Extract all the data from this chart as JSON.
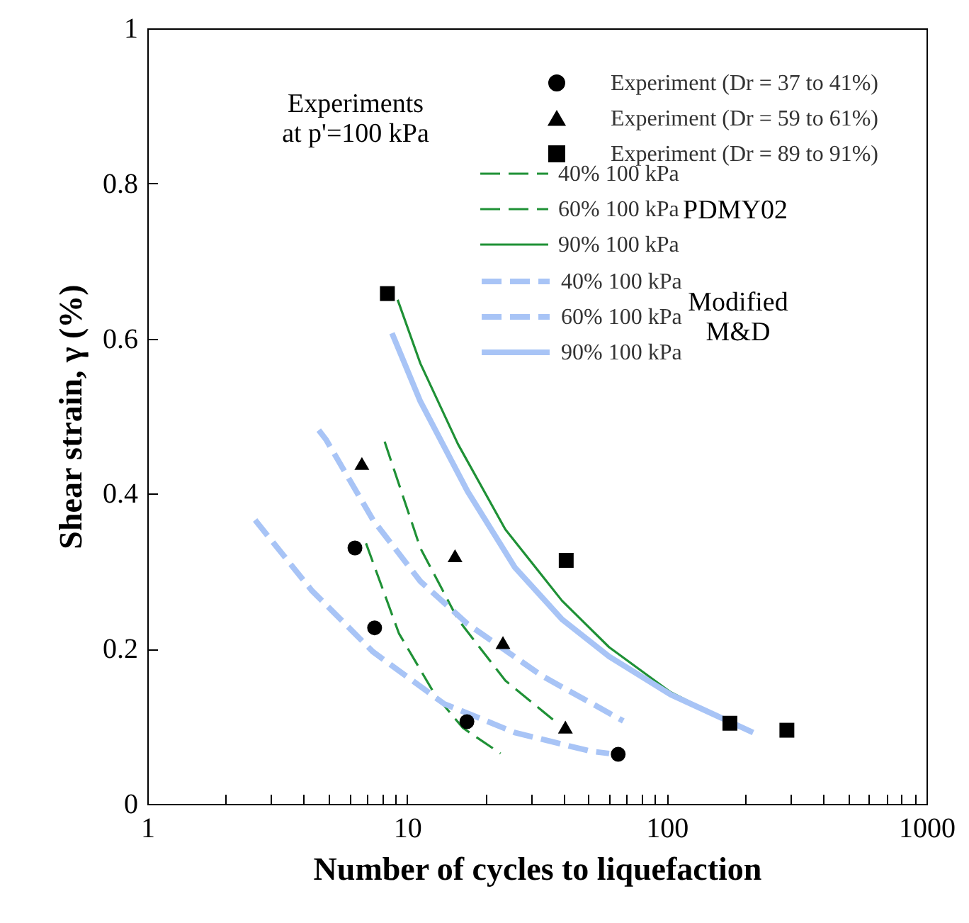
{
  "chart_data": {
    "type": "line",
    "xlabel": "Number of cycles to liquefaction",
    "ylabel": "Shear strain, γ  (%)",
    "log": "x",
    "xlim": [
      1,
      1000
    ],
    "ylim": [
      0,
      1
    ],
    "xticks": [
      1,
      {
        "value": 2,
        "label": null
      },
      {
        "value": 3,
        "label": null
      },
      {
        "value": 4,
        "label": null
      },
      {
        "value": 5,
        "label": null
      },
      {
        "value": 6,
        "label": null
      },
      {
        "value": 7,
        "label": null
      },
      {
        "value": 8,
        "label": null
      },
      {
        "value": 9,
        "label": null
      },
      10,
      {
        "value": 20,
        "label": null
      },
      {
        "value": 30,
        "label": null
      },
      {
        "value": 40,
        "label": null
      },
      {
        "value": 50,
        "label": null
      },
      {
        "value": 60,
        "label": null
      },
      {
        "value": 70,
        "label": null
      },
      {
        "value": 80,
        "label": null
      },
      {
        "value": 90,
        "label": null
      },
      100,
      {
        "value": 200,
        "label": null
      },
      {
        "value": 300,
        "label": null
      },
      {
        "value": 400,
        "label": null
      },
      {
        "value": 500,
        "label": null
      },
      {
        "value": 600,
        "label": null
      },
      {
        "value": 700,
        "label": null
      },
      {
        "value": 800,
        "label": null
      },
      {
        "value": 900,
        "label": null
      },
      1000
    ],
    "yticks": [
      0,
      0.2,
      0.4,
      0.6,
      0.8,
      1
    ],
    "legend": "top right",
    "annotations": [
      "Experiments at p'=100 kPa",
      "PDMY02",
      "Modified M&D"
    ],
    "series": [
      {
        "name": "Experiment (Dr = 37 to 41%)",
        "type": "scatter",
        "marker": "circle",
        "color": "#000000",
        "x": [
          6.3,
          7.5,
          17,
          65
        ],
        "values": [
          0.33,
          0.227,
          0.106,
          0.064
        ]
      },
      {
        "name": "Experiment (Dr = 59 to 61%)",
        "type": "scatter",
        "marker": "triangle",
        "color": "#000000",
        "x": [
          6.7,
          15.3,
          23.4,
          40.7
        ],
        "values": [
          0.439,
          0.32,
          0.208,
          0.099
        ]
      },
      {
        "name": "Experiment (Dr = 89 to 91%)",
        "type": "scatter",
        "marker": "square",
        "color": "#000000",
        "x": [
          8.4,
          41,
          175,
          290
        ],
        "values": [
          0.658,
          0.314,
          0.104,
          0.095
        ]
      },
      {
        "name": "40% 100 kPa",
        "line_style": "dashed",
        "color": "#1f9136",
        "x": [
          6.95,
          9.3,
          12.8,
          16.4,
          22.9
        ],
        "values": [
          0.336,
          0.22,
          0.141,
          0.098,
          0.065
        ]
      },
      {
        "name": "60% 100 kPa",
        "line_style": "dashed",
        "color": "#1f9136",
        "x": [
          8.2,
          11.25,
          15.7,
          23.9,
          37.9
        ],
        "values": [
          0.467,
          0.33,
          0.238,
          0.159,
          0.104
        ]
      },
      {
        "name": "90% 100 kPa",
        "line_style": "solid",
        "color": "#1f9136",
        "x": [
          9.2,
          11.25,
          15.7,
          23.9,
          39.5,
          60,
          103.5,
          171,
          211
        ],
        "values": [
          0.65,
          0.568,
          0.464,
          0.354,
          0.262,
          0.202,
          0.144,
          0.107,
          0.095
        ]
      },
      {
        "name": "40% 100 kPa",
        "line_style": "dashed",
        "color": "#a8c4f6",
        "x": [
          2.6,
          4.3,
          4.87,
          7.4,
          13.9,
          26,
          50.8,
          60
        ],
        "values": [
          0.366,
          0.275,
          0.257,
          0.196,
          0.129,
          0.092,
          0.068,
          0.065
        ]
      },
      {
        "name": "60% 100 kPa",
        "line_style": "dashed",
        "color": "#a8c4f6",
        "x": [
          4.57,
          4.87,
          7.4,
          11.25,
          17.1,
          33.1,
          68
        ],
        "values": [
          0.482,
          0.47,
          0.366,
          0.287,
          0.232,
          0.165,
          0.107
        ]
      },
      {
        "name": "90% 100 kPa",
        "line_style": "solid",
        "color": "#a8c4f6",
        "x": [
          8.75,
          11.25,
          17.1,
          26,
          39.5,
          60,
          103.5,
          215
        ],
        "values": [
          0.607,
          0.519,
          0.403,
          0.305,
          0.238,
          0.19,
          0.141,
          0.092
        ]
      }
    ]
  }
}
